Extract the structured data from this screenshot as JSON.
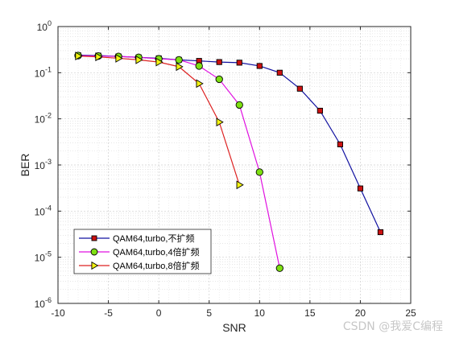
{
  "chart_data": {
    "type": "line",
    "xlabel": "SNR",
    "ylabel": "BER",
    "xscale": "linear",
    "yscale": "log",
    "xlim": [
      -10,
      25
    ],
    "ylim": [
      1e-06,
      1
    ],
    "grid": true,
    "minor_grid": true,
    "legend_location": "bottom-left",
    "x_ticks": [
      -10,
      -5,
      0,
      5,
      10,
      15,
      20,
      25
    ],
    "y_ticks": [
      {
        "value": 1,
        "base": "10",
        "exp": "0"
      },
      {
        "value": 0.1,
        "base": "10",
        "exp": "-1"
      },
      {
        "value": 0.01,
        "base": "10",
        "exp": "-2"
      },
      {
        "value": 0.001,
        "base": "10",
        "exp": "-3"
      },
      {
        "value": 0.0001,
        "base": "10",
        "exp": "-4"
      },
      {
        "value": 1e-05,
        "base": "10",
        "exp": "-5"
      },
      {
        "value": 1e-06,
        "base": "10",
        "exp": "-6"
      }
    ],
    "series": [
      {
        "name": "QAM64,turbo,不扩频",
        "line_color": "#1010a0",
        "marker": "square",
        "marker_color": "#cc1111",
        "x": [
          -8,
          -6,
          -4,
          -2,
          0,
          2,
          4,
          6,
          8,
          10,
          12,
          14,
          16,
          18,
          20,
          22
        ],
        "y": [
          0.24,
          0.235,
          0.225,
          0.215,
          0.205,
          0.19,
          0.18,
          0.17,
          0.165,
          0.14,
          0.1,
          0.045,
          0.015,
          0.0028,
          0.00031,
          3.5e-05
        ]
      },
      {
        "name": "QAM64,turbo,4倍扩频",
        "line_color": "#e010e0",
        "marker": "circle",
        "marker_color": "#7ee012",
        "x": [
          -8,
          -6,
          -4,
          -2,
          0,
          2,
          4,
          6,
          8,
          10,
          12
        ],
        "y": [
          0.235,
          0.23,
          0.225,
          0.215,
          0.2,
          0.19,
          0.14,
          0.072,
          0.02,
          0.0007,
          5.8e-06
        ]
      },
      {
        "name": "QAM64,turbo,8倍扩频",
        "line_color": "#dd2222",
        "marker": "triangle-right",
        "marker_color": "#f2f210",
        "x": [
          -8,
          -6,
          -4,
          -2,
          0,
          2,
          4,
          6,
          8
        ],
        "y": [
          0.23,
          0.22,
          0.205,
          0.19,
          0.17,
          0.135,
          0.058,
          0.0085,
          0.00037
        ]
      }
    ]
  },
  "watermark": "CSDN @我爱C编程"
}
